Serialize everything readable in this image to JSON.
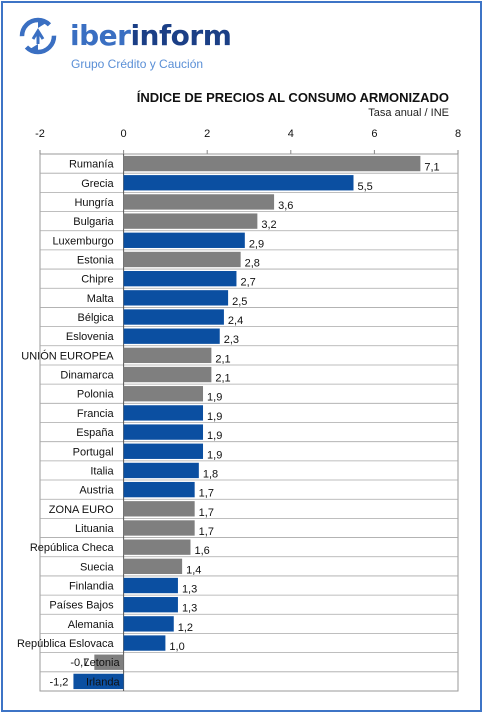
{
  "header": {
    "brand_part1": "iber",
    "brand_part2": "inform",
    "brand_subtitle": "Grupo Crédito y Caución",
    "logo_icon": "circular-arrows-icon"
  },
  "chart_data": {
    "type": "bar",
    "orientation": "horizontal",
    "title": "ÍNDICE DE PRECIOS AL CONSUMO ARMONIZADO",
    "subtitle": "Tasa anual / INE",
    "xlim": [
      -2,
      8
    ],
    "xticks": [
      "-2",
      "0",
      "2",
      "4",
      "6",
      "8"
    ],
    "grid": true,
    "colors": {
      "blue": "#0b4fa1",
      "gray": "#7f7f7f"
    },
    "categories": [
      "Rumanía",
      "Grecia",
      "Hungría",
      "Bulgaria",
      "Luxemburgo",
      "Estonia",
      "Chipre",
      "Malta",
      "Bélgica",
      "Eslovenia",
      "UNIÓN EUROPEA",
      "Dinamarca",
      "Polonia",
      "Francia",
      "España",
      "Portugal",
      "Italia",
      "Austria",
      "ZONA EURO",
      "Lituania",
      "República Checa",
      "Suecia",
      "Finlandia",
      "Países Bajos",
      "Alemania",
      "República Eslovaca",
      "Letonia",
      "Irlanda"
    ],
    "values": [
      7.1,
      5.5,
      3.6,
      3.2,
      2.9,
      2.8,
      2.7,
      2.5,
      2.4,
      2.3,
      2.1,
      2.1,
      1.9,
      1.9,
      1.9,
      1.9,
      1.8,
      1.7,
      1.7,
      1.7,
      1.6,
      1.4,
      1.3,
      1.3,
      1.2,
      1.0,
      -0.7,
      -1.2
    ],
    "value_labels": [
      "7,1",
      "5,5",
      "3,6",
      "3,2",
      "2,9",
      "2,8",
      "2,7",
      "2,5",
      "2,4",
      "2,3",
      "2,1",
      "2,1",
      "1,9",
      "1,9",
      "1,9",
      "1,9",
      "1,8",
      "1,7",
      "1,7",
      "1,7",
      "1,6",
      "1,4",
      "1,3",
      "1,3",
      "1,2",
      "1,0",
      "-0,7",
      "-1,2"
    ],
    "bar_colors": [
      "gray",
      "blue",
      "gray",
      "gray",
      "blue",
      "gray",
      "blue",
      "blue",
      "blue",
      "blue",
      "gray",
      "gray",
      "gray",
      "blue",
      "blue",
      "blue",
      "blue",
      "blue",
      "gray",
      "gray",
      "gray",
      "gray",
      "blue",
      "blue",
      "blue",
      "blue",
      "gray",
      "blue"
    ]
  }
}
